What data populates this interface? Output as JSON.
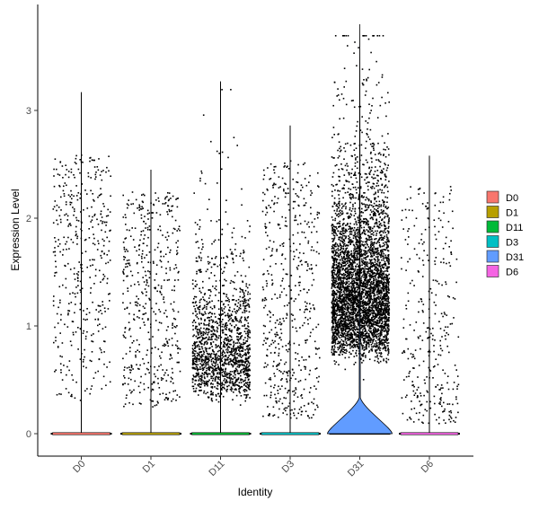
{
  "chart_data": {
    "type": "violin",
    "title": "",
    "xlabel": "Identity",
    "ylabel": "Expression Level",
    "ylim": [
      -0.2,
      3.9
    ],
    "yticks": [
      "0",
      "1",
      "2",
      "3"
    ],
    "categories": [
      "D0",
      "D1",
      "D11",
      "D3",
      "D31",
      "D6"
    ],
    "legend": {
      "position": "right",
      "entries": [
        {
          "label": "D0",
          "color": "#F8766D"
        },
        {
          "label": "D1",
          "color": "#B79F00"
        },
        {
          "label": "D11",
          "color": "#00BA38"
        },
        {
          "label": "D3",
          "color": "#00BFC4"
        },
        {
          "label": "D31",
          "color": "#619CFF"
        },
        {
          "label": "D6",
          "color": "#F564E3"
        }
      ]
    },
    "series": [
      {
        "name": "D0",
        "max": 3.17,
        "expressing_cells": 420
      },
      {
        "name": "D1",
        "max": 2.45,
        "expressing_cells": 480
      },
      {
        "name": "D11",
        "max": 3.27,
        "expressing_cells": 1500
      },
      {
        "name": "D3",
        "max": 2.86,
        "expressing_cells": 520
      },
      {
        "name": "D31",
        "max": 3.8,
        "expressing_cells": 4200
      },
      {
        "name": "D6",
        "max": 2.58,
        "expressing_cells": 330
      }
    ],
    "grid": false
  }
}
